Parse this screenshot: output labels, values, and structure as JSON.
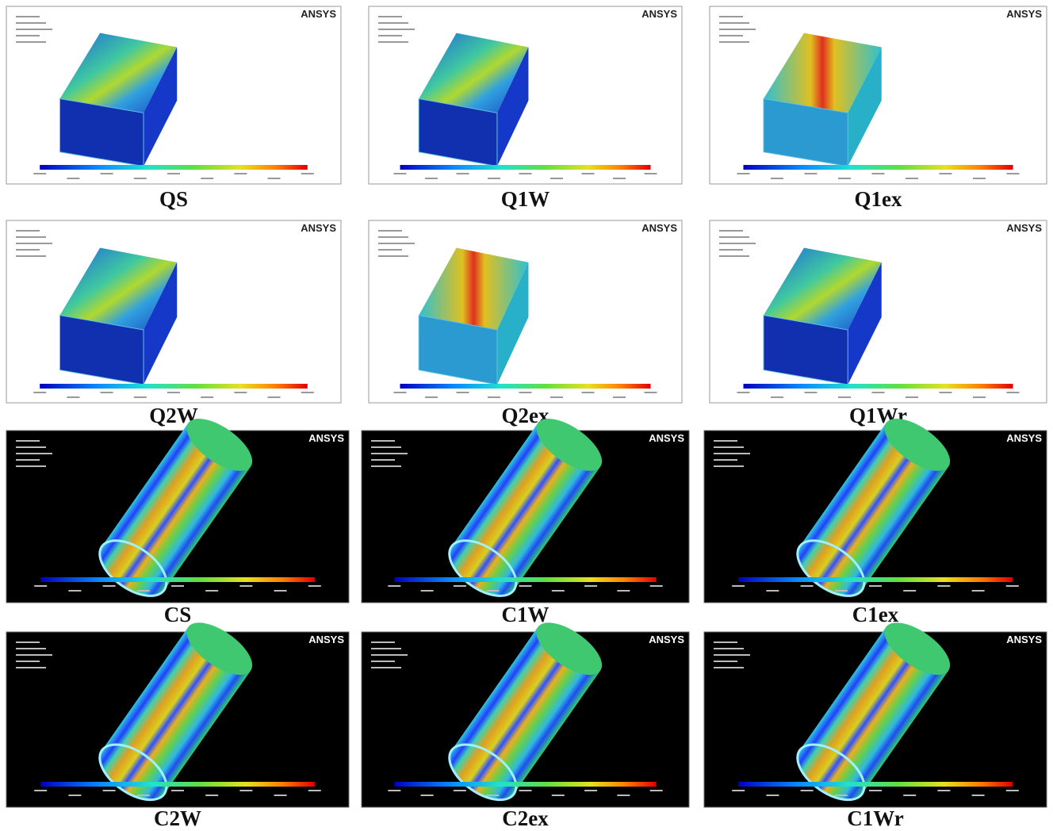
{
  "panels": [
    {
      "caption": "QS",
      "logo": "ANSYS"
    },
    {
      "caption": "Q1W",
      "logo": "ANSYS"
    },
    {
      "caption": "Q1ex",
      "logo": "ANSYS"
    },
    {
      "caption": "Q2W",
      "logo": "ANSYS"
    },
    {
      "caption": "Q2ex",
      "logo": "ANSYS"
    },
    {
      "caption": "Q1Wr",
      "logo": "ANSYS"
    },
    {
      "caption": "CS",
      "logo": "ANSYS"
    },
    {
      "caption": "C1W",
      "logo": "ANSYS"
    },
    {
      "caption": "C1ex",
      "logo": "ANSYS"
    },
    {
      "caption": "C2W",
      "logo": "ANSYS"
    },
    {
      "caption": "C2ex",
      "logo": "ANSYS"
    },
    {
      "caption": "C1Wr",
      "logo": "ANSYS"
    }
  ]
}
